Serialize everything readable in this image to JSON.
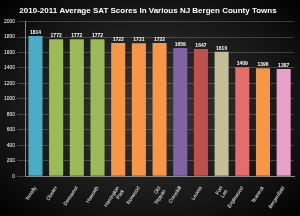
{
  "chart_data": {
    "type": "bar",
    "title": "2010-2011 Average SAT Scores In Various NJ Bergen County Towns",
    "categories": [
      "Tenafly",
      "Closter",
      "Demarest",
      "Haworth",
      "Harrington Park",
      "Norwood",
      "Old Tappan",
      "Cresskill",
      "Leonia",
      "Fort Lee",
      "Englewood",
      "Teaneck",
      "Bergenfield"
    ],
    "values": [
      1814,
      1772,
      1772,
      1772,
      1722,
      1721,
      1722,
      1659,
      1647,
      1610,
      1409,
      1396,
      1387
    ],
    "colors": [
      "#4bacc6",
      "#9bbb59",
      "#9bbb59",
      "#9bbb59",
      "#f79646",
      "#f79646",
      "#f79646",
      "#8064a2",
      "#c0504d",
      "#c4bd97",
      "#e36c6c",
      "#f79646",
      "#e8a0c8"
    ],
    "ylim": [
      0,
      2000
    ],
    "yticks": [
      0,
      200,
      400,
      600,
      800,
      1000,
      1200,
      1400,
      1600,
      1800,
      2000
    ],
    "grid": true,
    "data_labels": true
  }
}
